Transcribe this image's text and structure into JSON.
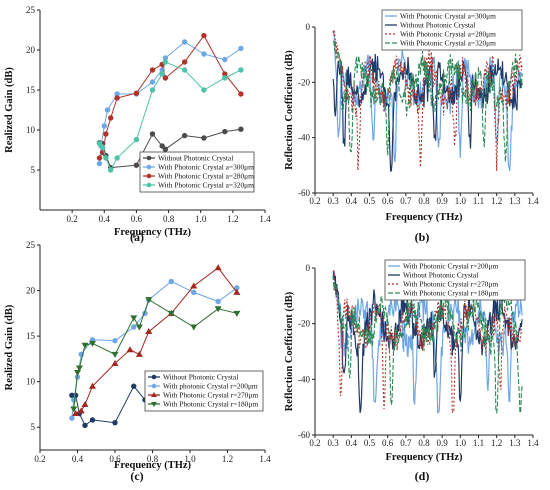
{
  "chart_data": [
    {
      "id": "a",
      "type": "line",
      "panel_label": "(a)",
      "xlabel": "Frequency (THz)",
      "ylabel": "Realized Gain (dB)",
      "xlim": [
        0,
        1.4
      ],
      "ylim": [
        0,
        25
      ],
      "xticks": [
        "0.2",
        "0.4",
        "0.6",
        "0.8",
        "1.0",
        "1.2",
        "1.4"
      ],
      "yticks": [
        "5",
        "10",
        "15",
        "20",
        "25"
      ],
      "legend_position": "bottom-right",
      "series": [
        {
          "name": "Without Photonic Crystal",
          "color": "#4a4a4a",
          "marker": "circle",
          "dash": "",
          "x": [
            0.37,
            0.39,
            0.41,
            0.44,
            0.6,
            0.7,
            0.76,
            0.78,
            0.9,
            1.02,
            1.15,
            1.25
          ],
          "y": [
            8.4,
            8.3,
            6.8,
            5.3,
            5.6,
            9.5,
            8.0,
            7.6,
            9.3,
            9.0,
            9.8,
            10.1
          ]
        },
        {
          "name": "With Photonic Crystal a=300μm",
          "color": "#6fa6e4",
          "marker": "circle",
          "dash": "",
          "x": [
            0.37,
            0.38,
            0.4,
            0.42,
            0.48,
            0.6,
            0.7,
            0.76,
            0.78,
            0.9,
            1.02,
            1.15,
            1.25
          ],
          "y": [
            5.8,
            8.0,
            10.5,
            12.5,
            14.5,
            14.5,
            16.0,
            17.5,
            19.0,
            21.0,
            19.5,
            18.8,
            20.2
          ]
        },
        {
          "name": "With Photonic Crystal a=280μm",
          "color": "#b0332c",
          "marker": "circle",
          "dash": "",
          "x": [
            0.37,
            0.39,
            0.41,
            0.44,
            0.48,
            0.6,
            0.7,
            0.76,
            0.78,
            0.9,
            1.02,
            1.15,
            1.25
          ],
          "y": [
            6.5,
            7.2,
            9.5,
            11.5,
            14.0,
            14.6,
            17.5,
            18.2,
            16.5,
            18.5,
            21.8,
            17.0,
            14.5
          ]
        },
        {
          "name": "With Photonic Crystal a=320μm",
          "color": "#4ec3a8",
          "marker": "circle",
          "dash": "",
          "x": [
            0.37,
            0.39,
            0.41,
            0.44,
            0.48,
            0.6,
            0.7,
            0.76,
            0.78,
            0.9,
            1.02,
            1.15,
            1.25
          ],
          "y": [
            8.3,
            7.8,
            6.5,
            5.0,
            6.5,
            8.8,
            15.0,
            17.0,
            18.5,
            17.5,
            15.0,
            16.5,
            17.5
          ]
        }
      ]
    },
    {
      "id": "b",
      "type": "line",
      "panel_label": "(b)",
      "xlabel": "Frequency (THz)",
      "ylabel": "Reflection Coefficient (dB)",
      "xlim": [
        0.2,
        1.4
      ],
      "ylim": [
        -60,
        0
      ],
      "xticks": [
        "0.2",
        "0.3",
        "0.4",
        "0.5",
        "0.6",
        "0.7",
        "0.8",
        "0.9",
        "1.0",
        "1.1",
        "1.2",
        "1.3",
        "1.4"
      ],
      "yticks": [
        "0",
        "-20",
        "-40",
        "-60"
      ],
      "legend_position": "top-right",
      "series": [
        {
          "name": "With Photonic Crystal a=300μm",
          "color": "#6fa6e4",
          "dash": "",
          "seed": 11,
          "dips": [
            0.33,
            0.52,
            0.64,
            0.88,
            1.0,
            1.2,
            1.27
          ]
        },
        {
          "name": "Without Photonic Crystal",
          "color": "#1f3a68",
          "dash": "",
          "seed": 23,
          "dips": [
            0.31,
            0.36,
            0.62,
            0.86,
            1.05
          ]
        },
        {
          "name": "With Photonic Crystal a=280μm",
          "color": "#b0332c",
          "dash": "2,2",
          "seed": 37,
          "dips": [
            0.44,
            0.78,
            0.97,
            1.2
          ]
        },
        {
          "name": "With Photonic Crystal a=320μm",
          "color": "#2e8b57",
          "dash": "5,2",
          "seed": 51,
          "dips": [
            0.4,
            0.6,
            1.13,
            1.25
          ]
        }
      ]
    },
    {
      "id": "c",
      "type": "line",
      "panel_label": "(c)",
      "xlabel": "Frequency (THz)",
      "ylabel": "Realized Gain (dB)",
      "xlim": [
        0.2,
        1.4
      ],
      "ylim": [
        2.5,
        25
      ],
      "xticks": [
        "0.2",
        "0.4",
        "0.6",
        "0.8",
        "1.0",
        "1.2",
        "1.4"
      ],
      "yticks": [
        "5",
        "10",
        "15",
        "20",
        "25"
      ],
      "legend_position": "bottom-right",
      "series": [
        {
          "name": "Without Photonic Crystal",
          "color": "#1f3a68",
          "marker": "circle",
          "dash": "",
          "x": [
            0.37,
            0.39,
            0.41,
            0.44,
            0.48,
            0.6,
            0.7,
            0.76,
            0.78,
            0.9,
            1.02,
            1.15,
            1.25
          ],
          "y": [
            8.5,
            8.5,
            6.5,
            5.2,
            5.8,
            5.5,
            9.5,
            8.0,
            7.5,
            9.2,
            9.0,
            9.6,
            10.0
          ]
        },
        {
          "name": "With photonic Crystal r=200μm",
          "color": "#6fa6e4",
          "marker": "circle",
          "dash": "",
          "x": [
            0.37,
            0.38,
            0.4,
            0.42,
            0.48,
            0.6,
            0.7,
            0.76,
            0.78,
            0.9,
            1.02,
            1.15,
            1.25
          ],
          "y": [
            6.0,
            8.0,
            10.5,
            13.0,
            14.6,
            14.5,
            16.0,
            17.5,
            19.0,
            21.0,
            19.8,
            18.8,
            20.3
          ]
        },
        {
          "name": "With Photonic Crystal r=270μm",
          "color": "#a2271f",
          "marker": "triangle-up",
          "dash": "",
          "x": [
            0.39,
            0.42,
            0.44,
            0.48,
            0.6,
            0.68,
            0.73,
            0.78,
            0.9,
            1.02,
            1.15,
            1.25
          ],
          "y": [
            6.5,
            6.8,
            7.5,
            9.5,
            12.0,
            13.5,
            13.0,
            15.5,
            17.5,
            20.5,
            22.5,
            19.8
          ]
        },
        {
          "name": "With Photonic Crystal r=180μm",
          "color": "#2f6f2f",
          "marker": "triangle-down",
          "dash": "",
          "x": [
            0.38,
            0.4,
            0.41,
            0.44,
            0.48,
            0.6,
            0.7,
            0.73,
            0.78,
            0.9,
            1.02,
            1.15,
            1.25
          ],
          "y": [
            7.0,
            11.0,
            11.5,
            14.0,
            14.2,
            13.0,
            17.0,
            16.0,
            19.0,
            17.5,
            16.0,
            18.0,
            17.5
          ]
        }
      ]
    },
    {
      "id": "d",
      "type": "line",
      "panel_label": "(d)",
      "xlabel": "Frequency (THz)",
      "ylabel": "Reflection Coefficient (dB)",
      "xlim": [
        0.2,
        1.4
      ],
      "ylim": [
        -60,
        0
      ],
      "xticks": [
        "0.2",
        "0.3",
        "0.4",
        "0.5",
        "0.6",
        "0.7",
        "0.8",
        "0.9",
        "1.0",
        "1.1",
        "1.2",
        "1.3",
        "1.4"
      ],
      "yticks": [
        "0",
        "-20",
        "-40",
        "-60"
      ],
      "legend_position": "top-right",
      "series": [
        {
          "name": "With Photonic Crystal r=200μm",
          "color": "#6fa6e4",
          "dash": "",
          "seed": 13,
          "dips": [
            0.53,
            0.75,
            0.88,
            1.15,
            1.27
          ]
        },
        {
          "name": "Without Photonic Crystal",
          "color": "#1f3a68",
          "dash": "",
          "seed": 29,
          "dips": [
            0.36,
            0.45,
            0.86,
            1.0
          ]
        },
        {
          "name": "With Photonic Crystal r=270μm",
          "color": "#b0332c",
          "dash": "2,2",
          "seed": 41,
          "dips": [
            0.34,
            0.58,
            0.96,
            1.22
          ]
        },
        {
          "name": "With Photonic Crystal r=180μm",
          "color": "#2e8b57",
          "dash": "5,2",
          "seed": 59,
          "dips": [
            0.39,
            0.62,
            1.2,
            1.33
          ]
        }
      ]
    }
  ]
}
